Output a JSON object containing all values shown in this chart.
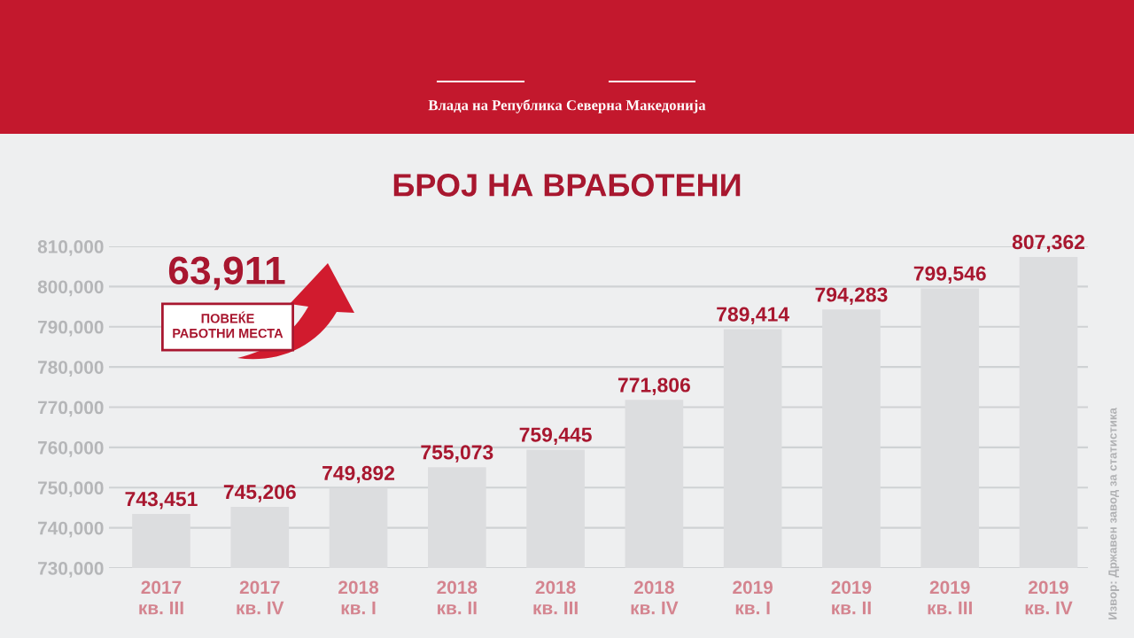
{
  "chart_data": {
    "type": "bar",
    "title": "БРОЈ НА ВРАБОТЕНИ",
    "categories": [
      "2017\nкв. III",
      "2017\nкв. IV",
      "2018\nкв. I",
      "2018\nкв. II",
      "2018\nкв. III",
      "2018\nкв. IV",
      "2019\nкв. I",
      "2019\nкв. II",
      "2019\nкв. III",
      "2019\nкв. IV"
    ],
    "values": [
      743451,
      745206,
      749892,
      755073,
      759445,
      771806,
      789414,
      794283,
      799546,
      807362
    ],
    "value_labels": [
      "743,451",
      "745,206",
      "749,892",
      "755,073",
      "759,445",
      "771,806",
      "789,414",
      "794,283",
      "799,546",
      "807,362"
    ],
    "color": "#dcdddf",
    "ylim": [
      730000,
      810000
    ],
    "yticks": [
      {
        "value": 730000,
        "label": "730,000"
      },
      {
        "value": 740000,
        "label": "740,000"
      },
      {
        "value": 750000,
        "label": "750,000"
      },
      {
        "value": 760000,
        "label": "760,000"
      },
      {
        "value": 770000,
        "label": "770,000"
      },
      {
        "value": 780000,
        "label": "780,000"
      },
      {
        "value": 790000,
        "label": "790,000"
      },
      {
        "value": 800000,
        "label": "800,000"
      },
      {
        "value": 810000,
        "label": "810,000"
      }
    ],
    "grid": "y",
    "annotations": [
      "Влада на Република Северна Македонија",
      "63,911",
      "ПОВЕЌЕ\nРАБОТНИ МЕСТА",
      "Извор: Државен завод за статистика"
    ]
  }
}
